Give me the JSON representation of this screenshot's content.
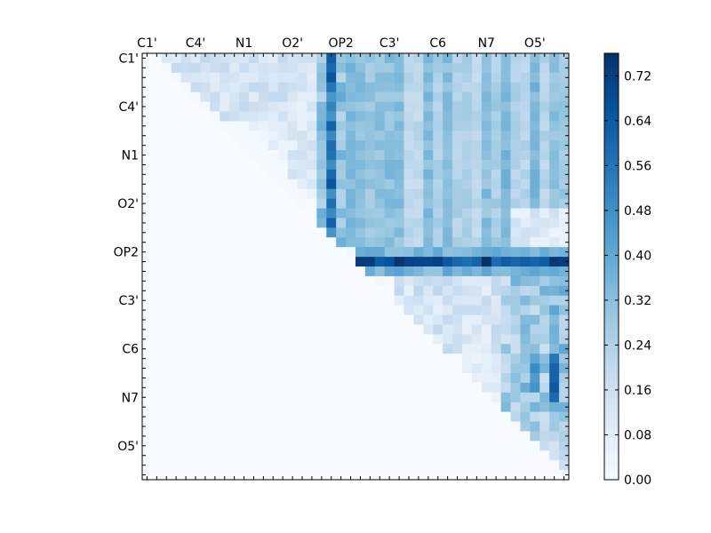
{
  "chart_data": {
    "type": "heatmap",
    "title": "",
    "xlabel": "",
    "ylabel": "",
    "n": 44,
    "tick_labels": [
      "C1'",
      "C4'",
      "N1",
      "O2'",
      "OP2",
      "C3'",
      "C6",
      "N7",
      "O5'"
    ],
    "tick_positions": [
      0,
      5,
      10,
      15,
      20,
      25,
      30,
      35,
      40
    ],
    "x_ticks_position": "top",
    "colormap": "Blues",
    "color_range": [
      0.0,
      0.76
    ],
    "colorbar": {
      "ticks": [
        "0.00",
        "0.08",
        "0.16",
        "0.24",
        "0.32",
        "0.40",
        "0.48",
        "0.56",
        "0.64",
        "0.72"
      ],
      "tick_values": [
        0.0,
        0.08,
        0.16,
        0.24,
        0.32,
        0.4,
        0.48,
        0.56,
        0.64,
        0.72
      ],
      "placement": "right"
    },
    "structure": "upper-triangular matrix (values only above the diagonal, zero elsewhere)",
    "highlights": [
      {
        "description": "row OP2 (index 21) strongly elevated",
        "row": 21,
        "col_range": [
          22,
          43
        ],
        "value_range": [
          0.56,
          0.76
        ]
      },
      {
        "description": "column OP2 (index 19) elevated for rows 0-19",
        "col": 19,
        "row_range": [
          0,
          19
        ],
        "value_range": [
          0.45,
          0.66
        ]
      },
      {
        "description": "upper-right block moderate",
        "row_range": [
          0,
          19
        ],
        "col_range": [
          21,
          43
        ],
        "value_range": [
          0.15,
          0.4
        ]
      },
      {
        "description": "lower-right block (rows 23-43) light to moderate",
        "row_range": [
          23,
          43
        ],
        "col_range": [
          37,
          43
        ],
        "value_range": [
          0.15,
          0.6
        ]
      }
    ]
  }
}
